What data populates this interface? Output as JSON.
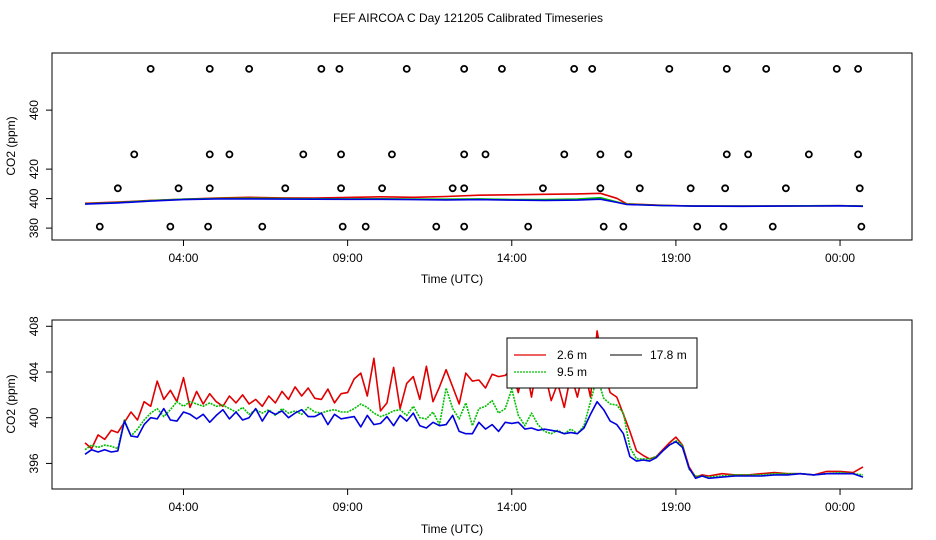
{
  "title": "FEF AIRCOA C  Day 121205  Calibrated Timeseries",
  "colors": {
    "red": "#e00000",
    "green": "#00c000",
    "blue": "#0000e0",
    "axis": "#000000"
  },
  "chart_data": [
    {
      "type": "scatter",
      "xlabel": "Time (UTC)",
      "ylabel": "CO2 (ppm)",
      "xlim": [
        0,
        24.4
      ],
      "ylim": [
        376,
        494
      ],
      "x_ticks": [
        3,
        8,
        13,
        18,
        23
      ],
      "x_tick_labels": [
        "04:00",
        "09:00",
        "14:00",
        "19:00",
        "00:00"
      ],
      "y_ticks": [
        380,
        400,
        420,
        460
      ],
      "y_tick_labels": [
        "380",
        "400",
        "420",
        "460"
      ],
      "points_top": [
        2.0,
        3.8,
        5.0,
        7.2,
        7.75,
        9.8,
        11.55,
        12.7,
        14.9,
        15.45,
        17.8,
        19.55,
        20.75,
        22.9,
        23.55
      ],
      "points_high": [
        1.5,
        3.8,
        4.4,
        6.65,
        7.8,
        9.35,
        11.55,
        12.2,
        14.6,
        15.7,
        16.55,
        19.55,
        20.2,
        22.05,
        23.55
      ],
      "points_mid": [
        1.0,
        2.85,
        3.8,
        6.1,
        7.8,
        9.05,
        11.2,
        11.55,
        13.95,
        15.7,
        16.9,
        18.45,
        19.5,
        21.35,
        23.6
      ],
      "points_low": [
        0.45,
        2.6,
        3.75,
        5.4,
        7.85,
        8.55,
        10.7,
        11.55,
        13.5,
        15.8,
        16.4,
        18.65,
        19.45,
        20.95,
        23.65
      ],
      "point_levels": {
        "top": 488,
        "high": 430,
        "mid": 407,
        "low": 381
      },
      "series": [
        {
          "name": "2.6 m",
          "color": "red",
          "x": [
            0,
            1,
            2,
            3,
            4,
            5,
            6,
            7,
            8,
            9,
            10,
            11,
            12,
            13,
            14,
            15,
            15.7,
            16.2,
            16.5,
            17.5,
            18.5,
            20,
            21,
            22,
            23,
            23.7
          ],
          "values": [
            396.8,
            397.6,
            398.8,
            399.6,
            400.4,
            400.9,
            400.5,
            400.4,
            400.8,
            401.2,
            400.9,
            401.4,
            402.3,
            402.6,
            402.9,
            403.2,
            403.6,
            400.2,
            396.5,
            395.5,
            395.0,
            394.9,
            395.0,
            395.1,
            395.2,
            395.0
          ]
        },
        {
          "name": "9.5 m",
          "color": "green",
          "x": [
            0,
            1,
            2,
            3,
            4,
            5,
            6,
            7,
            8,
            9,
            10,
            11,
            12,
            13,
            14,
            15,
            15.7,
            16.2,
            16.5,
            17.5,
            18.5,
            20,
            21,
            22,
            23,
            23.7
          ],
          "values": [
            396.5,
            397.3,
            398.6,
            399.6,
            400.1,
            400.2,
            400.1,
            399.9,
            399.8,
            399.9,
            399.7,
            399.6,
            399.8,
            399.4,
            399.3,
            399.7,
            400.6,
            397.8,
            396.2,
            395.4,
            395.0,
            394.9,
            395.0,
            395.1,
            395.2,
            394.9
          ]
        },
        {
          "name": "17.8 m",
          "color": "blue",
          "x": [
            0,
            1,
            2,
            3,
            4,
            5,
            6,
            7,
            8,
            9,
            10,
            11,
            12,
            13,
            14,
            15,
            15.7,
            16.2,
            16.5,
            17.5,
            18.5,
            20,
            21,
            22,
            23,
            23.7
          ],
          "values": [
            396.3,
            397.1,
            398.3,
            399.3,
            399.8,
            399.8,
            399.7,
            399.6,
            399.5,
            399.5,
            399.3,
            399.1,
            399.3,
            399.0,
            398.8,
            399.0,
            399.6,
            397.4,
            396.0,
            395.3,
            394.9,
            394.8,
            394.9,
            395.0,
            395.1,
            394.8
          ]
        }
      ]
    },
    {
      "type": "line",
      "xlabel": "Time (UTC)",
      "ylabel": "CO2 (ppm)",
      "xlim": [
        0,
        24.4
      ],
      "ylim": [
        394.2,
        408.2
      ],
      "x_ticks": [
        3,
        8,
        13,
        18,
        23
      ],
      "x_tick_labels": [
        "04:00",
        "09:00",
        "14:00",
        "19:00",
        "00:00"
      ],
      "y_ticks": [
        396,
        400,
        404,
        408
      ],
      "y_tick_labels": [
        "396",
        "400",
        "404",
        "408"
      ],
      "legend": [
        "2.6 m",
        "9.5 m",
        "17.8 m"
      ],
      "series": [
        {
          "name": "2.6 m",
          "color": "red",
          "x": [
            0,
            0.2,
            0.4,
            0.6,
            0.8,
            1.0,
            1.2,
            1.4,
            1.6,
            1.8,
            2.0,
            2.2,
            2.4,
            2.6,
            2.8,
            3.0,
            3.2,
            3.4,
            3.6,
            3.8,
            4.0,
            4.2,
            4.4,
            4.6,
            4.8,
            5.0,
            5.2,
            5.4,
            5.6,
            5.8,
            6.0,
            6.2,
            6.4,
            6.6,
            6.8,
            7.0,
            7.2,
            7.4,
            7.6,
            7.8,
            8.0,
            8.2,
            8.4,
            8.6,
            8.8,
            9.0,
            9.2,
            9.4,
            9.6,
            9.8,
            10.0,
            10.2,
            10.4,
            10.6,
            10.8,
            11.0,
            11.2,
            11.4,
            11.6,
            11.8,
            12.0,
            12.2,
            12.4,
            12.6,
            12.8,
            13.0,
            13.2,
            13.4,
            13.6,
            13.8,
            14.0,
            14.2,
            14.4,
            14.6,
            14.8,
            15.0,
            15.2,
            15.4,
            15.6,
            15.8,
            16.0,
            16.2,
            16.4,
            16.6,
            16.8,
            17.0,
            17.2,
            17.4,
            17.6,
            17.8,
            18.0,
            18.2,
            18.4,
            18.6,
            18.8,
            19.0,
            19.4,
            19.8,
            20.2,
            20.6,
            21.0,
            21.4,
            21.8,
            22.2,
            22.6,
            23.0,
            23.4,
            23.7
          ],
          "values": [
            397.8,
            397.3,
            398.5,
            398.1,
            398.9,
            398.7,
            399.6,
            400.5,
            399.8,
            401.4,
            401.0,
            403.2,
            401.6,
            402.4,
            401.4,
            403.5,
            400.9,
            402.3,
            401.2,
            402.1,
            401.4,
            401.0,
            401.9,
            401.3,
            402.0,
            401.2,
            401.6,
            401.0,
            401.9,
            401.3,
            402.3,
            401.6,
            402.7,
            401.9,
            402.6,
            401.7,
            401.6,
            402.5,
            401.3,
            402.1,
            402.2,
            403.4,
            403.9,
            401.9,
            405.2,
            400.6,
            401.3,
            404.4,
            400.8,
            403.0,
            403.6,
            401.6,
            404.5,
            401.4,
            402.7,
            404.2,
            402.7,
            401.2,
            403.9,
            403.2,
            403.3,
            402.6,
            403.8,
            403.6,
            403.7,
            404.2,
            402.2,
            405.0,
            401.8,
            405.1,
            404.0,
            401.5,
            403.0,
            400.9,
            403.8,
            401.8,
            404.4,
            401.8,
            407.6,
            404.2,
            402.2,
            401.8,
            400.3,
            398.8,
            397.1,
            396.7,
            396.4,
            396.6,
            397.2,
            397.8,
            398.3,
            397.6,
            395.7,
            394.8,
            395.0,
            394.9,
            395.1,
            395.0,
            395.0,
            395.1,
            395.2,
            395.1,
            395.1,
            395.0,
            395.3,
            395.3,
            395.2,
            395.7
          ]
        },
        {
          "name": "9.5 m",
          "color": "green",
          "x": [
            0,
            0.2,
            0.4,
            0.6,
            0.8,
            1.0,
            1.2,
            1.4,
            1.6,
            1.8,
            2.0,
            2.2,
            2.4,
            2.6,
            2.8,
            3.0,
            3.2,
            3.4,
            3.6,
            3.8,
            4.0,
            4.2,
            4.4,
            4.6,
            4.8,
            5.0,
            5.2,
            5.4,
            5.6,
            5.8,
            6.0,
            6.2,
            6.4,
            6.6,
            6.8,
            7.0,
            7.2,
            7.4,
            7.6,
            7.8,
            8.0,
            8.2,
            8.4,
            8.6,
            8.8,
            9.0,
            9.2,
            9.4,
            9.6,
            9.8,
            10.0,
            10.2,
            10.4,
            10.6,
            10.8,
            11.0,
            11.2,
            11.4,
            11.6,
            11.8,
            12.0,
            12.2,
            12.4,
            12.6,
            12.8,
            13.0,
            13.2,
            13.4,
            13.6,
            13.8,
            14.0,
            14.2,
            14.4,
            14.6,
            14.8,
            15.0,
            15.2,
            15.4,
            15.6,
            15.8,
            16.0,
            16.2,
            16.4,
            16.6,
            16.8,
            17.0,
            17.2,
            17.4,
            17.6,
            17.8,
            18.0,
            18.2,
            18.4,
            18.6,
            18.8,
            19.0,
            19.4,
            19.8,
            20.2,
            20.6,
            21.0,
            21.4,
            21.8,
            22.2,
            22.6,
            23.0,
            23.4,
            23.7
          ],
          "values": [
            397.2,
            397.6,
            397.4,
            397.6,
            397.5,
            397.3,
            399.8,
            398.4,
            399.0,
            399.8,
            400.4,
            400.8,
            400.1,
            400.7,
            401.4,
            401.0,
            401.4,
            401.2,
            401.0,
            401.3,
            401.0,
            401.1,
            400.8,
            400.5,
            400.9,
            400.3,
            400.7,
            400.4,
            400.7,
            400.2,
            400.8,
            400.4,
            400.6,
            400.3,
            400.9,
            400.5,
            400.4,
            400.6,
            400.7,
            400.5,
            400.5,
            400.8,
            401.2,
            400.9,
            400.4,
            400.1,
            400.3,
            400.6,
            400.7,
            400.2,
            401.0,
            400.0,
            399.9,
            400.5,
            399.4,
            402.6,
            400.8,
            399.9,
            401.3,
            399.3,
            400.8,
            401.0,
            401.5,
            400.4,
            400.8,
            402.5,
            400.2,
            399.3,
            400.4,
            399.4,
            398.8,
            398.6,
            398.9,
            398.6,
            399.0,
            398.6,
            399.3,
            401.4,
            403.6,
            401.7,
            401.2,
            401.1,
            400.4,
            397.4,
            396.4,
            396.4,
            396.4,
            396.6,
            397.1,
            397.6,
            398.0,
            397.6,
            395.5,
            394.9,
            394.9,
            394.8,
            394.9,
            395.0,
            395.0,
            395.0,
            395.1,
            395.1,
            395.1,
            395.0,
            395.1,
            395.2,
            395.1,
            395.0
          ]
        },
        {
          "name": "17.8 m",
          "color": "blue",
          "x": [
            0,
            0.2,
            0.4,
            0.6,
            0.8,
            1.0,
            1.2,
            1.4,
            1.6,
            1.8,
            2.0,
            2.2,
            2.4,
            2.6,
            2.8,
            3.0,
            3.2,
            3.4,
            3.6,
            3.8,
            4.0,
            4.2,
            4.4,
            4.6,
            4.8,
            5.0,
            5.2,
            5.4,
            5.6,
            5.8,
            6.0,
            6.2,
            6.4,
            6.6,
            6.8,
            7.0,
            7.2,
            7.4,
            7.6,
            7.8,
            8.0,
            8.2,
            8.4,
            8.6,
            8.8,
            9.0,
            9.2,
            9.4,
            9.6,
            9.8,
            10.0,
            10.2,
            10.4,
            10.6,
            10.8,
            11.0,
            11.2,
            11.4,
            11.6,
            11.8,
            12.0,
            12.2,
            12.4,
            12.6,
            12.8,
            13.0,
            13.2,
            13.4,
            13.6,
            13.8,
            14.0,
            14.2,
            14.4,
            14.6,
            14.8,
            15.0,
            15.2,
            15.4,
            15.6,
            15.8,
            16.0,
            16.2,
            16.4,
            16.6,
            16.8,
            17.0,
            17.2,
            17.4,
            17.6,
            17.8,
            18.0,
            18.2,
            18.4,
            18.6,
            18.8,
            19.0,
            19.4,
            19.8,
            20.2,
            20.6,
            21.0,
            21.4,
            21.8,
            22.2,
            22.6,
            23.0,
            23.4,
            23.7
          ],
          "values": [
            396.8,
            397.2,
            397.0,
            397.2,
            397.0,
            397.1,
            399.7,
            398.4,
            398.3,
            399.4,
            400.0,
            399.9,
            400.8,
            399.8,
            399.7,
            400.5,
            400.3,
            399.9,
            400.3,
            399.6,
            400.2,
            400.7,
            399.9,
            400.5,
            399.8,
            400.0,
            400.8,
            399.7,
            400.6,
            400.3,
            400.6,
            400.0,
            400.4,
            400.7,
            400.1,
            400.1,
            400.4,
            399.4,
            400.3,
            399.9,
            400.0,
            400.1,
            399.2,
            400.2,
            399.4,
            399.5,
            400.1,
            399.3,
            400.2,
            399.7,
            400.4,
            399.3,
            399.1,
            399.6,
            399.3,
            399.4,
            400.2,
            398.8,
            398.6,
            398.6,
            399.6,
            399.0,
            399.4,
            398.8,
            399.6,
            399.5,
            399.6,
            399.0,
            399.1,
            398.9,
            399.0,
            398.9,
            398.8,
            398.6,
            398.7,
            398.6,
            399.1,
            400.3,
            401.4,
            400.7,
            399.7,
            399.4,
            398.6,
            396.6,
            396.2,
            396.3,
            396.2,
            396.5,
            397.1,
            397.6,
            397.9,
            397.4,
            395.6,
            394.7,
            394.9,
            394.7,
            394.8,
            394.9,
            394.9,
            394.9,
            395.0,
            395.0,
            395.1,
            395.0,
            395.1,
            395.1,
            395.1,
            394.8
          ]
        }
      ]
    }
  ]
}
